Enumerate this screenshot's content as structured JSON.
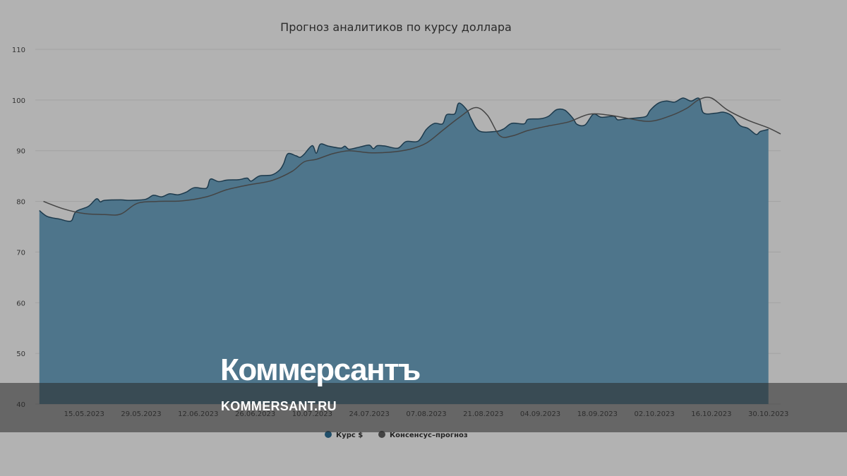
{
  "chart_data": {
    "type": "area",
    "title": "Прогноз аналитиков по курсу доллара",
    "xlabel": "",
    "ylabel": "",
    "ylim": [
      40,
      110
    ],
    "yticks": [
      40,
      50,
      60,
      70,
      80,
      90,
      100,
      110
    ],
    "xlim": [
      "2023-05-03",
      "2023-11-02"
    ],
    "xtick_labels": [
      "15.05.2023",
      "29.05.2023",
      "12.06.2023",
      "26.06.2023",
      "10.07.2023",
      "24.07.2023",
      "07.08.2023",
      "21.08.2023",
      "04.09.2023",
      "18.09.2023",
      "02.10.2023",
      "16.10.2023",
      "30.10.2023"
    ],
    "grid": true,
    "legend_position": "bottom-center",
    "series": [
      {
        "name": "Курс $",
        "kind": "area",
        "color": "#4a7389",
        "points": [
          [
            "2023-05-04",
            78.2
          ],
          [
            "2023-05-06",
            77.0
          ],
          [
            "2023-05-09",
            76.5
          ],
          [
            "2023-05-11",
            76.1
          ],
          [
            "2023-05-12",
            76.3
          ],
          [
            "2023-05-13",
            78.0
          ],
          [
            "2023-05-16",
            79.0
          ],
          [
            "2023-05-18",
            80.5
          ],
          [
            "2023-05-19",
            79.9
          ],
          [
            "2023-05-20",
            80.2
          ],
          [
            "2023-05-24",
            80.3
          ],
          [
            "2023-05-26",
            80.2
          ],
          [
            "2023-05-30",
            80.4
          ],
          [
            "2023-06-01",
            81.2
          ],
          [
            "2023-06-03",
            80.9
          ],
          [
            "2023-06-05",
            81.5
          ],
          [
            "2023-06-07",
            81.3
          ],
          [
            "2023-06-09",
            81.8
          ],
          [
            "2023-06-11",
            82.7
          ],
          [
            "2023-06-14",
            82.6
          ],
          [
            "2023-06-15",
            84.4
          ],
          [
            "2023-06-17",
            83.9
          ],
          [
            "2023-06-19",
            84.2
          ],
          [
            "2023-06-22",
            84.3
          ],
          [
            "2023-06-24",
            84.6
          ],
          [
            "2023-06-25",
            84.0
          ],
          [
            "2023-06-27",
            85.0
          ],
          [
            "2023-06-30",
            85.2
          ],
          [
            "2023-07-02",
            86.2
          ],
          [
            "2023-07-03",
            87.5
          ],
          [
            "2023-07-04",
            89.4
          ],
          [
            "2023-07-06",
            89.0
          ],
          [
            "2023-07-07",
            88.7
          ],
          [
            "2023-07-08",
            89.3
          ],
          [
            "2023-07-10",
            91.0
          ],
          [
            "2023-07-11",
            89.5
          ],
          [
            "2023-07-12",
            91.3
          ],
          [
            "2023-07-14",
            90.9
          ],
          [
            "2023-07-17",
            90.5
          ],
          [
            "2023-07-18",
            90.9
          ],
          [
            "2023-07-19",
            90.3
          ],
          [
            "2023-07-21",
            90.6
          ],
          [
            "2023-07-22",
            90.8
          ],
          [
            "2023-07-24",
            91.1
          ],
          [
            "2023-07-25",
            90.4
          ],
          [
            "2023-07-26",
            91.0
          ],
          [
            "2023-07-28",
            90.9
          ],
          [
            "2023-07-31",
            90.5
          ],
          [
            "2023-08-02",
            91.8
          ],
          [
            "2023-08-05",
            91.9
          ],
          [
            "2023-08-07",
            94.2
          ],
          [
            "2023-08-09",
            95.4
          ],
          [
            "2023-08-11",
            95.3
          ],
          [
            "2023-08-12",
            97.1
          ],
          [
            "2023-08-14",
            97.3
          ],
          [
            "2023-08-15",
            99.4
          ],
          [
            "2023-08-17",
            98.0
          ],
          [
            "2023-08-18",
            96.3
          ],
          [
            "2023-08-20",
            93.9
          ],
          [
            "2023-08-24",
            93.8
          ],
          [
            "2023-08-26",
            94.3
          ],
          [
            "2023-08-28",
            95.4
          ],
          [
            "2023-08-31",
            95.3
          ],
          [
            "2023-09-01",
            96.2
          ],
          [
            "2023-09-04",
            96.3
          ],
          [
            "2023-09-06",
            96.8
          ],
          [
            "2023-09-08",
            98.1
          ],
          [
            "2023-09-10",
            98.0
          ],
          [
            "2023-09-12",
            96.4
          ],
          [
            "2023-09-13",
            95.2
          ],
          [
            "2023-09-15",
            95.1
          ],
          [
            "2023-09-17",
            97.2
          ],
          [
            "2023-09-19",
            96.6
          ],
          [
            "2023-09-22",
            96.8
          ],
          [
            "2023-09-23",
            96.1
          ],
          [
            "2023-09-25",
            96.3
          ],
          [
            "2023-09-28",
            96.5
          ],
          [
            "2023-09-30",
            96.8
          ],
          [
            "2023-10-01",
            98.0
          ],
          [
            "2023-10-03",
            99.4
          ],
          [
            "2023-10-05",
            99.8
          ],
          [
            "2023-10-07",
            99.6
          ],
          [
            "2023-10-09",
            100.4
          ],
          [
            "2023-10-11",
            99.8
          ],
          [
            "2023-10-13",
            100.3
          ],
          [
            "2023-10-14",
            97.5
          ],
          [
            "2023-10-17",
            97.4
          ],
          [
            "2023-10-19",
            97.6
          ],
          [
            "2023-10-21",
            96.9
          ],
          [
            "2023-10-23",
            95.0
          ],
          [
            "2023-10-25",
            94.4
          ],
          [
            "2023-10-27",
            93.2
          ],
          [
            "2023-10-28",
            93.8
          ],
          [
            "2023-10-30",
            94.2
          ]
        ]
      },
      {
        "name": "Консенсус–прогноз",
        "kind": "line",
        "color": "#444444",
        "points": [
          [
            "2023-05-05",
            80.0
          ],
          [
            "2023-05-10",
            78.5
          ],
          [
            "2023-05-15",
            77.6
          ],
          [
            "2023-05-20",
            77.4
          ],
          [
            "2023-05-24",
            77.5
          ],
          [
            "2023-05-28",
            79.6
          ],
          [
            "2023-06-02",
            80.0
          ],
          [
            "2023-06-08",
            80.1
          ],
          [
            "2023-06-14",
            80.9
          ],
          [
            "2023-06-19",
            82.3
          ],
          [
            "2023-06-24",
            83.2
          ],
          [
            "2023-06-30",
            84.1
          ],
          [
            "2023-07-05",
            85.9
          ],
          [
            "2023-07-08",
            87.8
          ],
          [
            "2023-07-11",
            88.3
          ],
          [
            "2023-07-15",
            89.4
          ],
          [
            "2023-07-19",
            90.0
          ],
          [
            "2023-07-24",
            89.6
          ],
          [
            "2023-07-29",
            89.7
          ],
          [
            "2023-08-03",
            90.3
          ],
          [
            "2023-08-07",
            91.5
          ],
          [
            "2023-08-11",
            94.0
          ],
          [
            "2023-08-15",
            96.5
          ],
          [
            "2023-08-19",
            98.5
          ],
          [
            "2023-08-22",
            97.0
          ],
          [
            "2023-08-25",
            93.0
          ],
          [
            "2023-08-28",
            92.9
          ],
          [
            "2023-09-01",
            94.0
          ],
          [
            "2023-09-06",
            94.9
          ],
          [
            "2023-09-11",
            95.7
          ],
          [
            "2023-09-16",
            97.2
          ],
          [
            "2023-09-21",
            97.0
          ],
          [
            "2023-09-26",
            96.3
          ],
          [
            "2023-10-01",
            95.8
          ],
          [
            "2023-10-06",
            96.9
          ],
          [
            "2023-10-10",
            98.4
          ],
          [
            "2023-10-13",
            100.1
          ],
          [
            "2023-10-16",
            100.4
          ],
          [
            "2023-10-20",
            98.0
          ],
          [
            "2023-10-25",
            96.0
          ],
          [
            "2023-10-30",
            94.5
          ],
          [
            "2023-11-02",
            93.3
          ]
        ]
      }
    ]
  },
  "watermark": {
    "logo_text": "Коммерсантъ",
    "url_text": "KOMMERSANT.RU"
  },
  "colors": {
    "background": "#b2b2b2",
    "gridline": "#a2a2a2",
    "area_fill": "#4e758b",
    "area_stroke": "#1d3a4c",
    "consensus_line": "#444444"
  }
}
